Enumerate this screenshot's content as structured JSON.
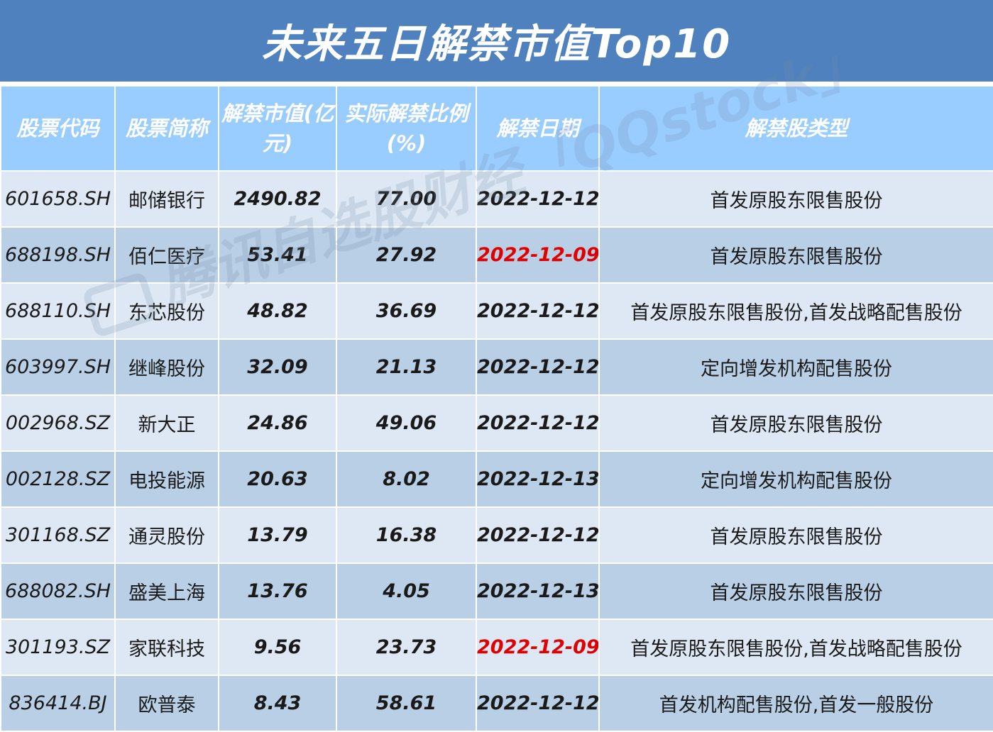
{
  "title": "未来五日解禁市值Top10",
  "columns": [
    "股票代码",
    "股票简称",
    "解禁市值(亿元)",
    "实际解禁比例(%)",
    "解禁日期",
    "解禁股类型"
  ],
  "colors": {
    "title_bg": "#4e81bd",
    "header_bg": "#99ccff",
    "row_odd": "#dde8f4",
    "row_even": "#b9cfe6",
    "highlight_date": "#e00000"
  },
  "watermark": "腾讯自选股财经「QQstock」",
  "chart_data": {
    "type": "table",
    "title": "未来五日解禁市值Top10",
    "columns": [
      "股票代码",
      "股票简称",
      "解禁市值(亿元)",
      "实际解禁比例(%)",
      "解禁日期",
      "解禁股类型"
    ],
    "rows": [
      {
        "code": "601658.SH",
        "name": "邮储银行",
        "value": "2490.82",
        "ratio": "77.00",
        "date": "2022-12-12",
        "highlight": false,
        "type": "首发原股东限售股份"
      },
      {
        "code": "688198.SH",
        "name": "佰仁医疗",
        "value": "53.41",
        "ratio": "27.92",
        "date": "2022-12-09",
        "highlight": true,
        "type": "首发原股东限售股份"
      },
      {
        "code": "688110.SH",
        "name": "东芯股份",
        "value": "48.82",
        "ratio": "36.69",
        "date": "2022-12-12",
        "highlight": false,
        "type": "首发原股东限售股份,首发战略配售股份"
      },
      {
        "code": "603997.SH",
        "name": "继峰股份",
        "value": "32.09",
        "ratio": "21.13",
        "date": "2022-12-12",
        "highlight": false,
        "type": "定向增发机构配售股份"
      },
      {
        "code": "002968.SZ",
        "name": "新大正",
        "value": "24.86",
        "ratio": "49.06",
        "date": "2022-12-12",
        "highlight": false,
        "type": "首发原股东限售股份"
      },
      {
        "code": "002128.SZ",
        "name": "电投能源",
        "value": "20.63",
        "ratio": "8.02",
        "date": "2022-12-13",
        "highlight": false,
        "type": "定向增发机构配售股份"
      },
      {
        "code": "301168.SZ",
        "name": "通灵股份",
        "value": "13.79",
        "ratio": "16.38",
        "date": "2022-12-12",
        "highlight": false,
        "type": "首发原股东限售股份"
      },
      {
        "code": "688082.SH",
        "name": "盛美上海",
        "value": "13.76",
        "ratio": "4.05",
        "date": "2022-12-13",
        "highlight": false,
        "type": "首发原股东限售股份"
      },
      {
        "code": "301193.SZ",
        "name": "家联科技",
        "value": "9.56",
        "ratio": "23.73",
        "date": "2022-12-09",
        "highlight": true,
        "type": "首发原股东限售股份,首发战略配售股份"
      },
      {
        "code": "836414.BJ",
        "name": "欧普泰",
        "value": "8.43",
        "ratio": "58.61",
        "date": "2022-12-12",
        "highlight": false,
        "type": "首发机构配售股份,首发一般股份"
      }
    ]
  }
}
